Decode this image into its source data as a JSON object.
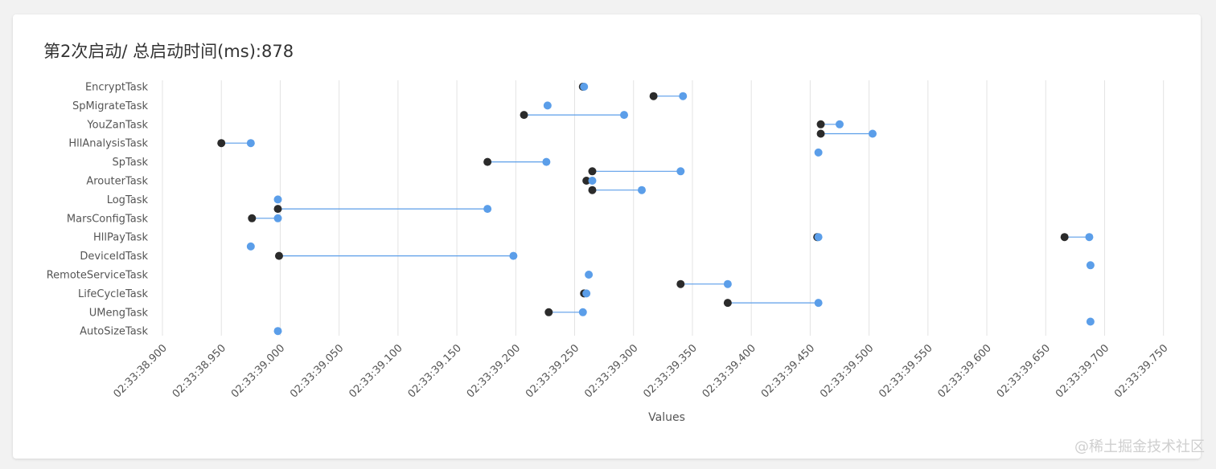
{
  "title": "第2次启动/ 总启动时间(ms):878",
  "watermark": "@稀土掘金技术社区",
  "colors": {
    "end_point": "#5b9ee9",
    "start_point": "#2b2b2b",
    "connector": "#5b9ee9",
    "grid": "#e3e3e3",
    "text": "#555555"
  },
  "chart_data": {
    "type": "dumbbell",
    "title": "第2次启动/ 总启动时间(ms):878",
    "xlabel": "Values",
    "ylabel": "",
    "x_tick_prefix": "02:33:",
    "x_ticks": [
      38.9,
      38.95,
      39.0,
      39.05,
      39.1,
      39.15,
      39.2,
      39.25,
      39.3,
      39.35,
      39.4,
      39.45,
      39.5,
      39.55,
      39.6,
      39.65,
      39.7,
      39.75
    ],
    "x_tick_labels": [
      "02:33:38.900",
      "02:33:38.950",
      "02:33:39.000",
      "02:33:39.050",
      "02:33:39.100",
      "02:33:39.150",
      "02:33:39.200",
      "02:33:39.250",
      "02:33:39.300",
      "02:33:39.350",
      "02:33:39.400",
      "02:33:39.450",
      "02:33:39.500",
      "02:33:39.550",
      "02:33:39.600",
      "02:33:39.650",
      "02:33:39.700",
      "02:33:39.750"
    ],
    "xlim": [
      38.9,
      39.755
    ],
    "grid": true,
    "categories": [
      "EncryptTask",
      "SpMigrateTask",
      "YouZanTask",
      "HllAnalysisTask",
      "SpTask",
      "ArouterTask",
      "LogTask",
      "MarsConfigTask",
      "HllPayTask",
      "DeviceIdTask",
      "RemoteServiceTask",
      "LifeCycleTask",
      "UMengTask",
      "AutoSizeTask"
    ],
    "segments": [
      {
        "row": 0.0,
        "start": 39.257,
        "end": 39.258
      },
      {
        "row": 0.5,
        "start": 39.317,
        "end": 39.342
      },
      {
        "row": 1.0,
        "start": 39.227,
        "end": 39.227
      },
      {
        "row": 1.5,
        "start": 39.207,
        "end": 39.292
      },
      {
        "row": 2.0,
        "start": 39.459,
        "end": 39.475
      },
      {
        "row": 2.5,
        "start": 39.459,
        "end": 39.503
      },
      {
        "row": 3.0,
        "start": 38.95,
        "end": 38.975
      },
      {
        "row": 3.5,
        "start": 39.457,
        "end": 39.457
      },
      {
        "row": 4.0,
        "start": 39.176,
        "end": 39.226
      },
      {
        "row": 4.5,
        "start": 39.265,
        "end": 39.34
      },
      {
        "row": 5.0,
        "start": 39.26,
        "end": 39.265
      },
      {
        "row": 5.5,
        "start": 39.265,
        "end": 39.307
      },
      {
        "row": 6.0,
        "start": 38.998,
        "end": 38.998
      },
      {
        "row": 6.5,
        "start": 38.998,
        "end": 39.176
      },
      {
        "row": 7.0,
        "start": 38.976,
        "end": 38.998
      },
      {
        "row": 8.0,
        "start": 39.456,
        "end": 39.457
      },
      {
        "row": 8.0,
        "start": 39.666,
        "end": 39.687
      },
      {
        "row": 8.5,
        "start": 38.975,
        "end": 38.975
      },
      {
        "row": 9.0,
        "start": 38.999,
        "end": 39.198
      },
      {
        "row": 9.5,
        "start": 39.688,
        "end": 39.688
      },
      {
        "row": 10.0,
        "start": 39.262,
        "end": 39.262
      },
      {
        "row": 10.5,
        "start": 39.34,
        "end": 39.38
      },
      {
        "row": 11.0,
        "start": 39.258,
        "end": 39.26
      },
      {
        "row": 11.5,
        "start": 39.38,
        "end": 39.457
      },
      {
        "row": 12.0,
        "start": 39.228,
        "end": 39.257
      },
      {
        "row": 12.5,
        "start": 39.688,
        "end": 39.688
      },
      {
        "row": 13.0,
        "start": 38.998,
        "end": 38.998
      }
    ]
  }
}
